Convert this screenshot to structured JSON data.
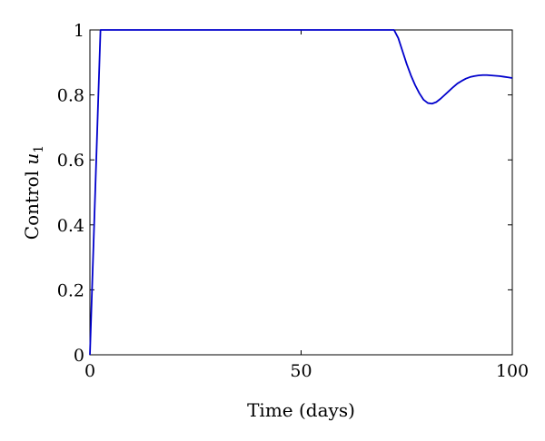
{
  "chart_data": {
    "type": "line",
    "title": "",
    "xlabel": "Time (days)",
    "ylabel": "Control u1",
    "ylabel_parts": {
      "text": "Control ",
      "var": "u",
      "sub": "1"
    },
    "xlim": [
      0,
      100
    ],
    "ylim": [
      0,
      1
    ],
    "xticks": [
      0,
      50,
      100
    ],
    "xtick_labels": [
      "0",
      "50",
      "100"
    ],
    "yticks": [
      0,
      0.2,
      0.4,
      0.6,
      0.8,
      1
    ],
    "ytick_labels": [
      "0",
      "0.2",
      "0.4",
      "0.6",
      "0.8",
      "1"
    ],
    "grid": false,
    "legend": "none",
    "series": [
      {
        "color": "#0000cc",
        "x": [
          0,
          2.5,
          72,
          73,
          74,
          75,
          76,
          77,
          78,
          79,
          80,
          81,
          82,
          83,
          84,
          85,
          86,
          87,
          88,
          89,
          90,
          91,
          92,
          93,
          94,
          95,
          96,
          97,
          98,
          99,
          100
        ],
        "y": [
          0,
          1,
          1,
          0.975,
          0.935,
          0.895,
          0.86,
          0.83,
          0.805,
          0.785,
          0.775,
          0.773,
          0.778,
          0.788,
          0.8,
          0.812,
          0.824,
          0.835,
          0.843,
          0.85,
          0.855,
          0.858,
          0.86,
          0.861,
          0.861,
          0.86,
          0.859,
          0.858,
          0.856,
          0.854,
          0.852
        ]
      }
    ]
  }
}
